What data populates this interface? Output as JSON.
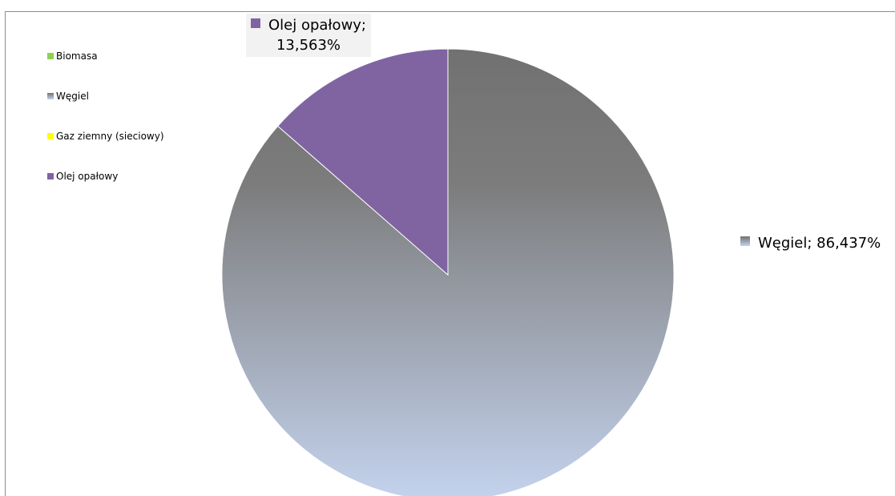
{
  "chart_data": {
    "type": "pie",
    "categories": [
      "Biomasa",
      "Węgiel",
      "Gaz ziemny (sieciowy)",
      "Olej opałowy"
    ],
    "values": [
      0,
      86.437,
      0,
      13.563
    ],
    "colors": [
      "#92d050",
      "#7f7f7f",
      "#ffff00",
      "#8064a2"
    ],
    "legend": {
      "position": "left",
      "entries": [
        "Biomasa",
        "Węgiel",
        "Gaz ziemny (sieciowy)",
        "Olej opałowy"
      ]
    },
    "data_labels": [
      {
        "series": "Węgiel",
        "label": "Węgiel; 86,437%"
      },
      {
        "series": "Olej opałowy",
        "line1": "Olej opałowy;",
        "line2": "13,563%"
      }
    ],
    "gradient": {
      "top": "#717171",
      "bottom": "#c4d3ee"
    }
  }
}
